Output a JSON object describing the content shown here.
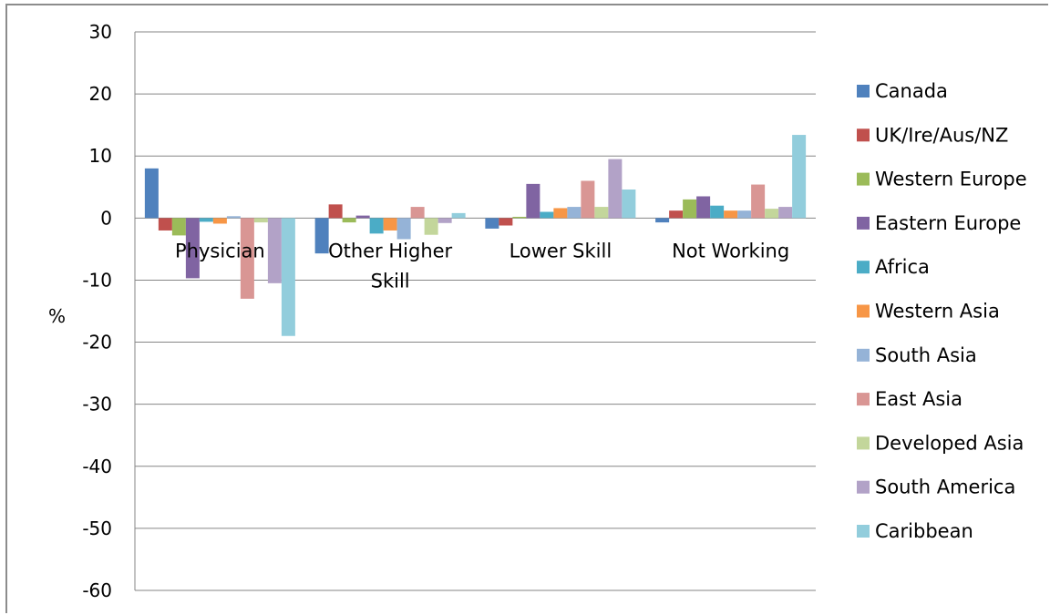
{
  "chart_data": {
    "type": "bar",
    "categories": [
      "Physician",
      "Other Higher Skill",
      "Lower Skill",
      "Not Working"
    ],
    "category_lines": [
      [
        "Physician"
      ],
      [
        "Other Higher",
        "Skill"
      ],
      [
        "Lower Skill"
      ],
      [
        "Not Working"
      ]
    ],
    "ylabel": "%",
    "ylim": [
      -60,
      30
    ],
    "yticks": [
      30,
      20,
      10,
      0,
      -10,
      -20,
      -30,
      -40,
      -50,
      -60
    ],
    "grid": true,
    "legend_position": "right",
    "series": [
      {
        "name": "Canada",
        "color": "#4F81BD",
        "values": [
          8.0,
          -5.7,
          -1.7,
          -0.7
        ]
      },
      {
        "name": "UK/Ire/Aus/NZ",
        "color": "#C0504D",
        "values": [
          -2.0,
          2.2,
          -1.2,
          1.2
        ]
      },
      {
        "name": "Western Europe",
        "color": "#9BBB59",
        "values": [
          -2.8,
          -0.7,
          0.2,
          3.0
        ]
      },
      {
        "name": "Eastern Europe",
        "color": "#8064A2",
        "values": [
          -9.7,
          0.4,
          5.5,
          3.5
        ]
      },
      {
        "name": "Africa",
        "color": "#4BACC6",
        "values": [
          -0.6,
          -2.5,
          1.0,
          2.0
        ]
      },
      {
        "name": "Western Asia",
        "color": "#F79646",
        "values": [
          -0.9,
          -2.0,
          1.6,
          1.2
        ]
      },
      {
        "name": "South Asia",
        "color": "#95B3D7",
        "values": [
          0.3,
          -3.4,
          1.8,
          1.2
        ]
      },
      {
        "name": "East Asia",
        "color": "#D99694",
        "values": [
          -13.0,
          1.8,
          6.0,
          5.4
        ]
      },
      {
        "name": "Developed Asia",
        "color": "#C3D69B",
        "values": [
          -0.7,
          -2.7,
          1.8,
          1.5
        ]
      },
      {
        "name": "South America",
        "color": "#B2A2C7",
        "values": [
          -10.5,
          -0.8,
          9.5,
          1.8
        ]
      },
      {
        "name": "Caribbean",
        "color": "#92CDDC",
        "values": [
          -19.0,
          0.8,
          4.6,
          13.4
        ]
      }
    ]
  }
}
